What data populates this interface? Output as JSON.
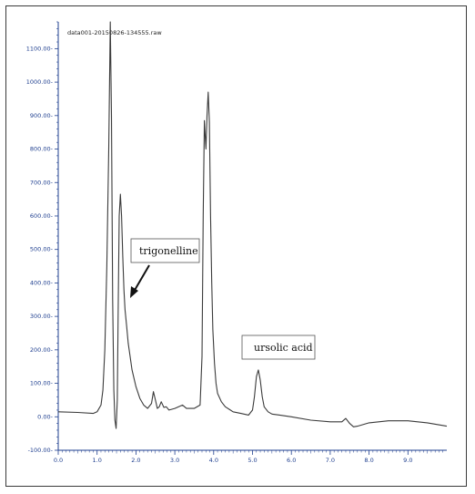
{
  "chart_data": {
    "type": "line",
    "title": "data001-20150826-134555.raw",
    "xlabel": "",
    "ylabel": "",
    "xlim": [
      0.0,
      10.0
    ],
    "ylim": [
      -100,
      1180
    ],
    "x_ticks": [
      "0.0",
      "1.0",
      "2.0",
      "3.0",
      "4.0",
      "5.0",
      "6.0",
      "7.0",
      "8.0",
      "9.0"
    ],
    "y_ticks": [
      "-100.00-",
      "0.00-",
      "100.00-",
      "200.00-",
      "300.00-",
      "400.00-",
      "500.00-",
      "600.00-",
      "700.00-",
      "800.00-",
      "900.00-",
      "1000.00-",
      "1100.00-"
    ],
    "grid": false,
    "series": [
      {
        "color": "#3a3a3a",
        "x": [
          0.0,
          0.5,
          0.9,
          1.0,
          1.1,
          1.15,
          1.2,
          1.25,
          1.3,
          1.34,
          1.37,
          1.4,
          1.43,
          1.46,
          1.49,
          1.52,
          1.54,
          1.57,
          1.6,
          1.63,
          1.66,
          1.69,
          1.72,
          1.76,
          1.8,
          1.85,
          1.9,
          2.0,
          2.1,
          2.2,
          2.3,
          2.4,
          2.45,
          2.5,
          2.55,
          2.6,
          2.65,
          2.72,
          2.78,
          2.85,
          3.0,
          3.2,
          3.3,
          3.5,
          3.65,
          3.7,
          3.73,
          3.76,
          3.8,
          3.83,
          3.86,
          3.89,
          3.92,
          3.95,
          3.98,
          4.02,
          4.06,
          4.1,
          4.2,
          4.3,
          4.5,
          4.7,
          4.9,
          5.0,
          5.05,
          5.1,
          5.15,
          5.2,
          5.25,
          5.3,
          5.4,
          5.5,
          5.7,
          6.0,
          6.5,
          7.0,
          7.2,
          7.3,
          7.4,
          7.5,
          7.6,
          7.7,
          8.0,
          8.5,
          9.0,
          9.5,
          10.0
        ],
        "y": [
          15,
          13,
          10,
          15,
          35,
          80,
          200,
          450,
          800,
          1180,
          900,
          350,
          80,
          -10,
          -35,
          50,
          300,
          600,
          665,
          600,
          480,
          380,
          320,
          270,
          220,
          180,
          140,
          90,
          55,
          35,
          25,
          40,
          75,
          50,
          25,
          30,
          45,
          28,
          30,
          20,
          25,
          35,
          25,
          25,
          35,
          180,
          600,
          885,
          800,
          900,
          970,
          880,
          600,
          400,
          260,
          160,
          100,
          70,
          45,
          30,
          15,
          10,
          5,
          20,
          60,
          120,
          140,
          110,
          60,
          30,
          15,
          8,
          5,
          0,
          -10,
          -15,
          -15,
          -15,
          -5,
          -20,
          -30,
          -28,
          -18,
          -12,
          -12,
          -18,
          -28
        ]
      }
    ],
    "annotations": [
      {
        "text": "trigonelline"
      },
      {
        "text": "ursolic acid"
      }
    ]
  }
}
